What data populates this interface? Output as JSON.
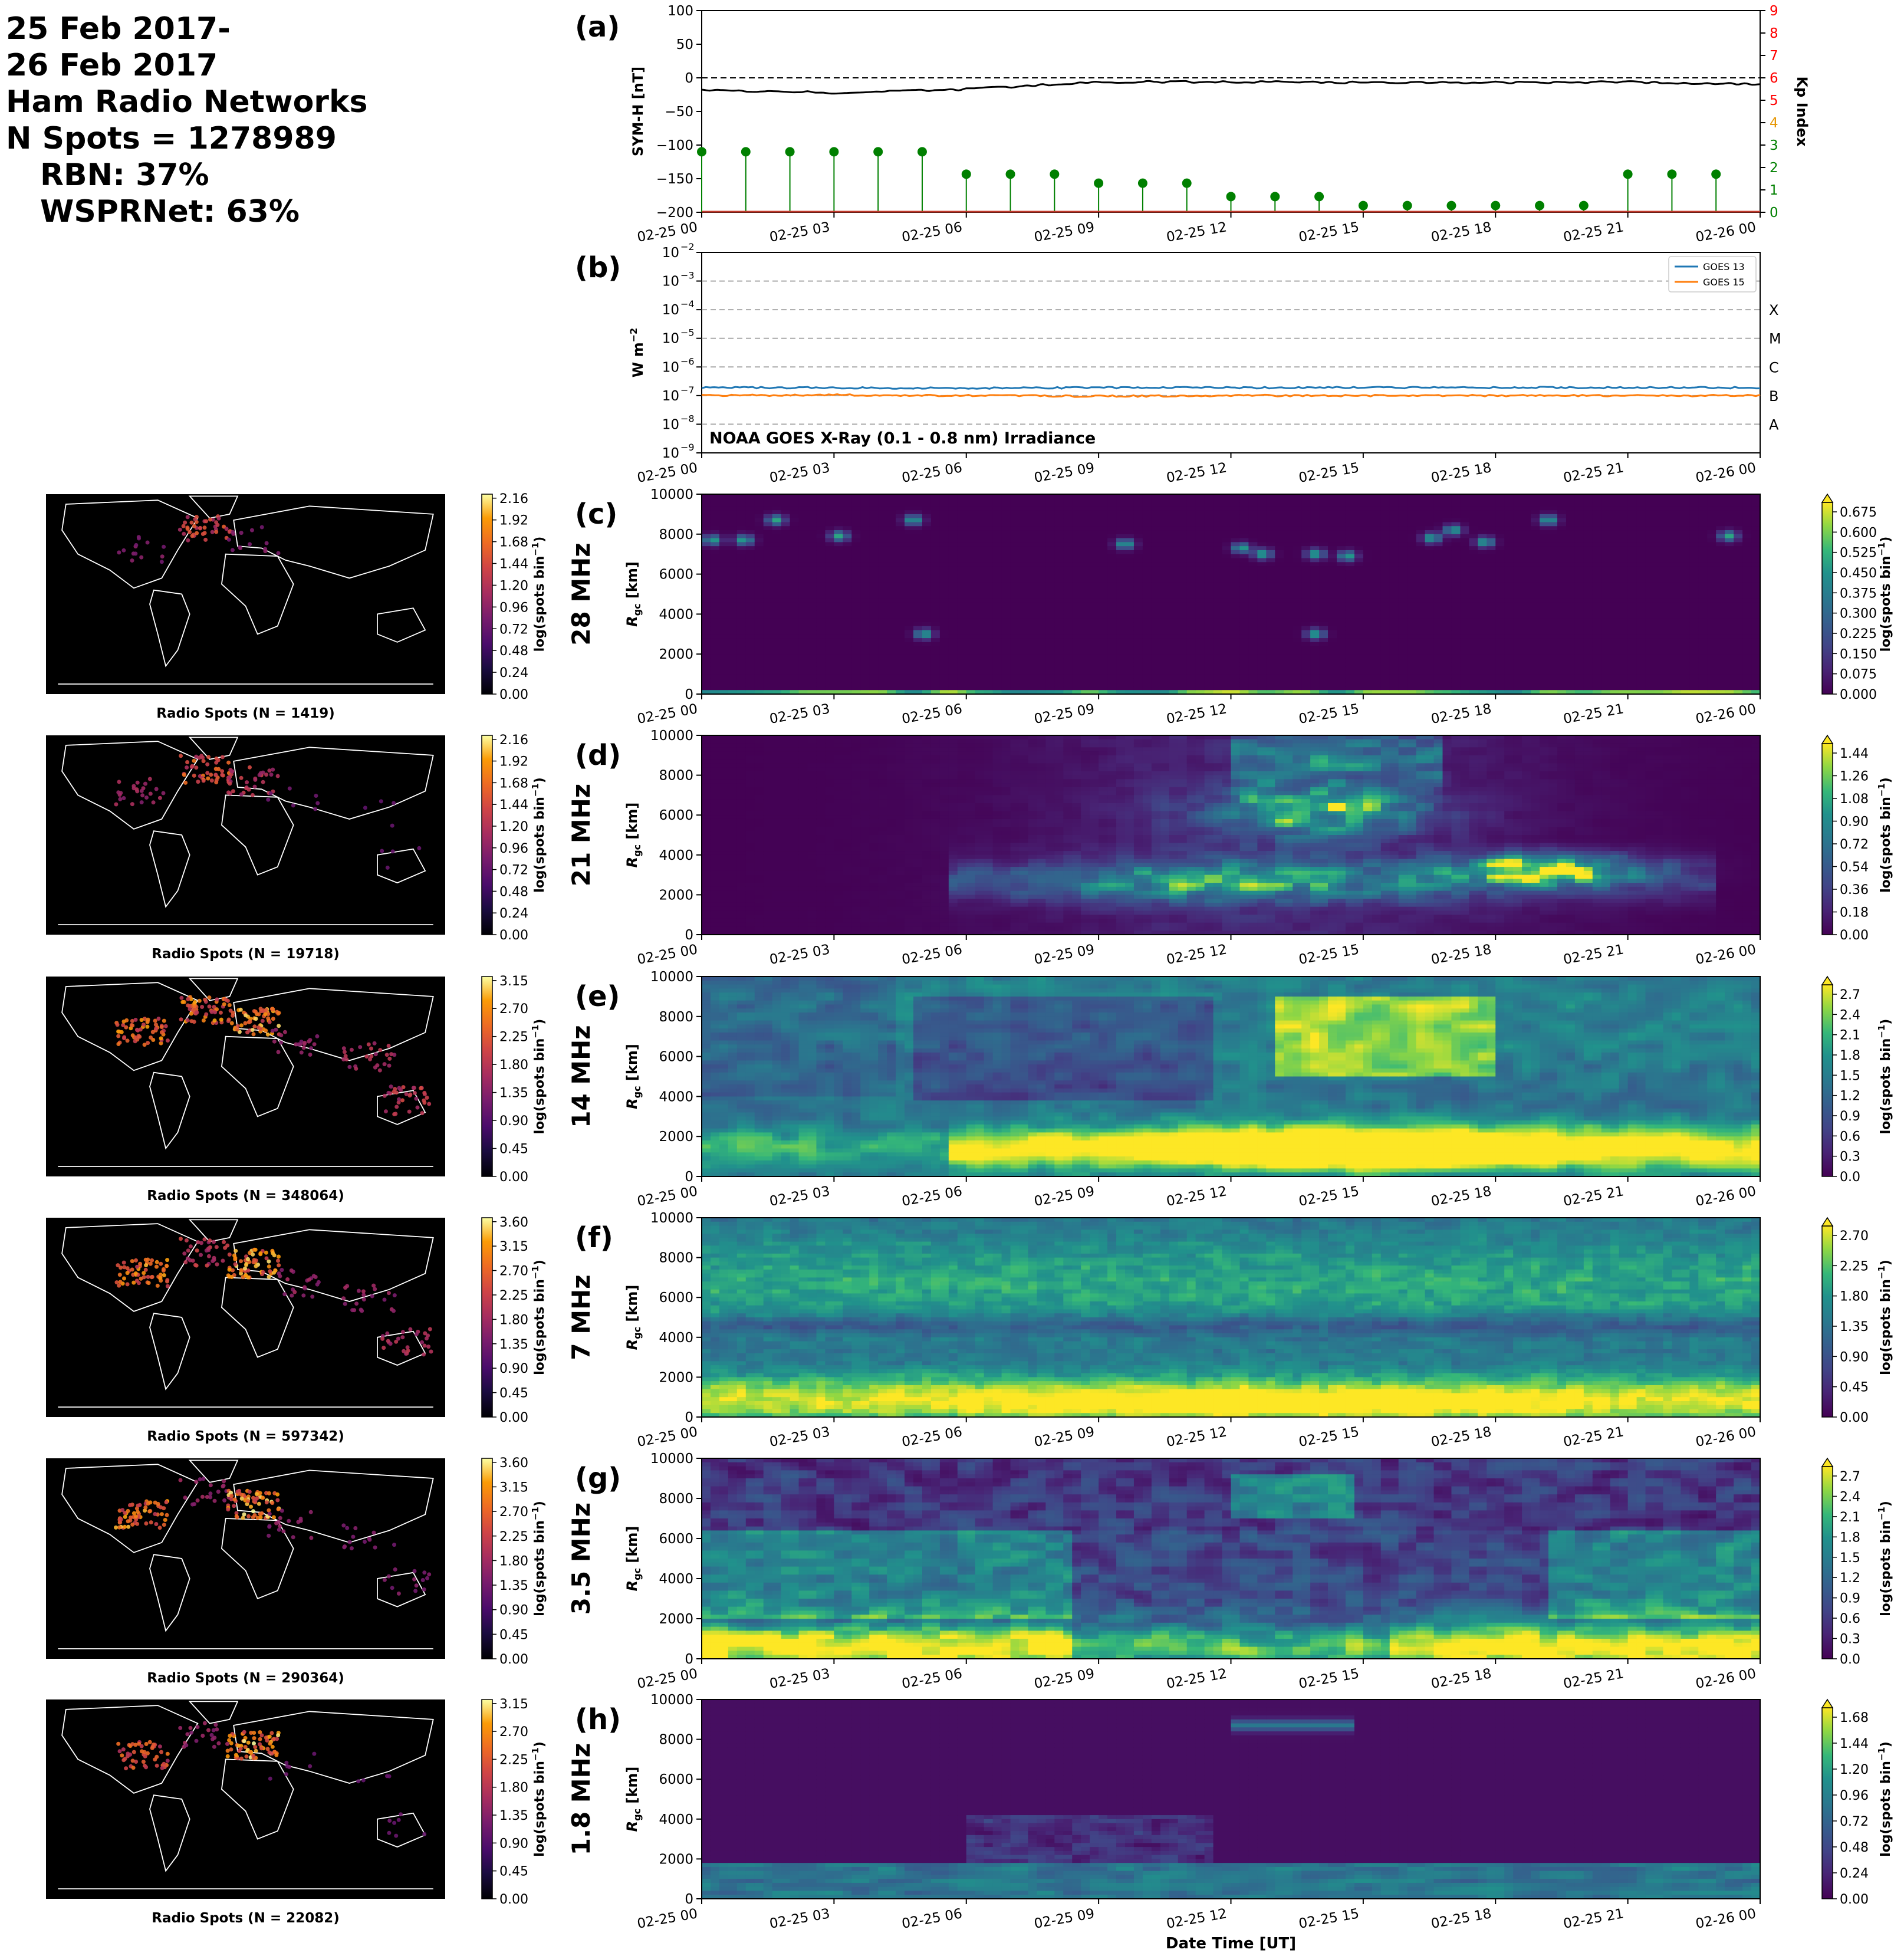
{
  "header": {
    "date_line1": "25 Feb 2017-",
    "date_line2": "26 Feb 2017",
    "network_title": "Ham Radio Networks",
    "n_spots": "N Spots = 1278989",
    "rbn": "RBN: 37%",
    "wsprnet": "WSPRNet: 63%"
  },
  "x_ticks": [
    "02-25 00",
    "02-25 03",
    "02-25 06",
    "02-25 09",
    "02-25 12",
    "02-25 15",
    "02-25 18",
    "02-25 21",
    "02-26 00"
  ],
  "x_axis_label": "Date Time [UT]",
  "colors": {
    "symh": "#000000",
    "kp": "#008000",
    "kp_axis": "#ff0000",
    "goes13": "#1f77b4",
    "goes15": "#ff7f0e",
    "map_bg": "#000000",
    "coast": "#ffffff"
  },
  "panel_a": {
    "label": "(a)",
    "ylabel": "SYM-H [nT]",
    "y2label": "Kp Index",
    "y_ticks": [
      "100",
      "50",
      "0",
      "−50",
      "−100",
      "−150",
      "−200"
    ],
    "y2_ticks": [
      "9",
      "8",
      "7",
      "6",
      "5",
      "4",
      "3",
      "2",
      "1",
      "0"
    ]
  },
  "panel_b": {
    "label": "(b)",
    "ylabel": "W m",
    "ylabel_sup": "−2",
    "y_ticks": [
      {
        "base": "10",
        "exp": "−2"
      },
      {
        "base": "10",
        "exp": "−3"
      },
      {
        "base": "10",
        "exp": "−4"
      },
      {
        "base": "10",
        "exp": "−5"
      },
      {
        "base": "10",
        "exp": "−6"
      },
      {
        "base": "10",
        "exp": "−7"
      },
      {
        "base": "10",
        "exp": "−8"
      },
      {
        "base": "10",
        "exp": "−9"
      }
    ],
    "flare_classes": [
      "X",
      "M",
      "C",
      "B",
      "A"
    ],
    "legend": [
      "GOES 13",
      "GOES 15"
    ],
    "title": "NOAA GOES X-Ray (0.1 - 0.8 nm) Irradiance"
  },
  "rgc_label": "R",
  "rgc_sub": "gc",
  "rgc_unit": " [km]",
  "rgc_ticks": [
    "10000",
    "8000",
    "6000",
    "4000",
    "2000",
    "0"
  ],
  "cbar_label": "log(spots bin",
  "cbar_sup": "−1",
  "cbar_close": ")",
  "bands": [
    {
      "label": "(c)",
      "freq": "28 MHz",
      "map_caption": "Radio Spots (N = 1419)",
      "map_ticks": [
        "2.16",
        "1.92",
        "1.68",
        "1.44",
        "1.20",
        "0.96",
        "0.72",
        "0.48",
        "0.24",
        "0.00"
      ],
      "rti_ticks": [
        "0.675",
        "0.600",
        "0.525",
        "0.450",
        "0.375",
        "0.300",
        "0.225",
        "0.150",
        "0.075",
        "0.000"
      ]
    },
    {
      "label": "(d)",
      "freq": "21 MHz",
      "map_caption": "Radio Spots (N = 19718)",
      "map_ticks": [
        "2.16",
        "1.92",
        "1.68",
        "1.44",
        "1.20",
        "0.96",
        "0.72",
        "0.48",
        "0.24",
        "0.00"
      ],
      "rti_ticks": [
        "1.44",
        "1.26",
        "1.08",
        "0.90",
        "0.72",
        "0.54",
        "0.36",
        "0.18",
        "0.00"
      ]
    },
    {
      "label": "(e)",
      "freq": "14 MHz",
      "map_caption": "Radio Spots (N = 348064)",
      "map_ticks": [
        "3.15",
        "2.70",
        "2.25",
        "1.80",
        "1.35",
        "0.90",
        "0.45",
        "0.00"
      ],
      "rti_ticks": [
        "2.7",
        "2.4",
        "2.1",
        "1.8",
        "1.5",
        "1.2",
        "0.9",
        "0.6",
        "0.3",
        "0.0"
      ]
    },
    {
      "label": "(f)",
      "freq": "7 MHz",
      "map_caption": "Radio Spots (N = 597342)",
      "map_ticks": [
        "3.60",
        "3.15",
        "2.70",
        "2.25",
        "1.80",
        "1.35",
        "0.90",
        "0.45",
        "0.00"
      ],
      "rti_ticks": [
        "2.70",
        "2.25",
        "1.80",
        "1.35",
        "0.90",
        "0.45",
        "0.00"
      ]
    },
    {
      "label": "(g)",
      "freq": "3.5 MHz",
      "map_caption": "Radio Spots (N = 290364)",
      "map_ticks": [
        "3.60",
        "3.15",
        "2.70",
        "2.25",
        "1.80",
        "1.35",
        "0.90",
        "0.45",
        "0.00"
      ],
      "rti_ticks": [
        "2.7",
        "2.4",
        "2.1",
        "1.8",
        "1.5",
        "1.2",
        "0.9",
        "0.6",
        "0.3",
        "0.0"
      ]
    },
    {
      "label": "(h)",
      "freq": "1.8 MHz",
      "map_caption": "Radio Spots (N = 22082)",
      "map_ticks": [
        "3.15",
        "2.70",
        "2.25",
        "1.80",
        "1.35",
        "0.90",
        "0.45",
        "0.00"
      ],
      "rti_ticks": [
        "1.68",
        "1.44",
        "1.20",
        "0.96",
        "0.72",
        "0.48",
        "0.24",
        "0.00"
      ]
    }
  ],
  "chart_data": [
    {
      "type": "line",
      "title": "",
      "ylabel": "SYM-H [nT]",
      "ylim": [
        -200,
        100
      ],
      "x": [
        "02-25 00",
        "02-25 03",
        "02-25 06",
        "02-25 09",
        "02-25 12",
        "02-25 15",
        "02-25 18",
        "02-25 21",
        "02-26 00"
      ],
      "series": [
        {
          "name": "",
          "values": [
            -18,
            -22,
            -17,
            -6,
            -6,
            -7,
            -7,
            -6,
            -10
          ]
        }
      ],
      "y2label": "Kp Index",
      "y2lim": [
        0,
        9
      ],
      "kp": {
        "x_hours": [
          0,
          1,
          2,
          3,
          4,
          5,
          6,
          7,
          8,
          9,
          10,
          11,
          12,
          13,
          14,
          15,
          16,
          17,
          18,
          19,
          20,
          21,
          22,
          23
        ],
        "values": [
          2.7,
          2.7,
          2.7,
          2.7,
          2.7,
          2.7,
          1.7,
          1.7,
          1.7,
          1.3,
          1.3,
          1.3,
          0.7,
          0.7,
          0.7,
          0.3,
          0.3,
          0.3,
          0.3,
          0.3,
          0.3,
          1.7,
          1.7,
          1.7
        ]
      }
    },
    {
      "type": "line",
      "title": "NOAA GOES X-Ray (0.1 - 0.8 nm) Irradiance",
      "ylabel": "W m^-2",
      "yscale": "log",
      "ylim": [
        1e-09,
        0.01
      ],
      "x": [
        "02-25 00",
        "02-25 03",
        "02-25 06",
        "02-25 09",
        "02-25 12",
        "02-25 15",
        "02-25 18",
        "02-25 21",
        "02-26 00"
      ],
      "series": [
        {
          "name": "GOES 13",
          "values": [
            1.9e-07,
            1.9e-07,
            1.8e-07,
            1.9e-07,
            1.9e-07,
            1.9e-07,
            1.9e-07,
            1.9e-07,
            1.9e-07
          ]
        },
        {
          "name": "GOES 15",
          "values": [
            1e-07,
            1.05e-07,
            1e-07,
            9.5e-08,
            1e-07,
            1e-07,
            1e-07,
            1e-07,
            1e-07
          ]
        }
      ]
    },
    {
      "type": "heatmap",
      "band": "28 MHz",
      "ylabel": "R_gc [km]",
      "ylim": [
        0,
        10000
      ],
      "clim": [
        0,
        0.675
      ],
      "max_at_km": [
        0,
        300
      ]
    },
    {
      "type": "heatmap",
      "band": "21 MHz",
      "ylabel": "R_gc [km]",
      "ylim": [
        0,
        10000
      ],
      "clim": [
        0,
        1.44
      ]
    },
    {
      "type": "heatmap",
      "band": "14 MHz",
      "ylabel": "R_gc [km]",
      "ylim": [
        0,
        10000
      ],
      "clim": [
        0,
        2.7
      ]
    },
    {
      "type": "heatmap",
      "band": "7 MHz",
      "ylabel": "R_gc [km]",
      "ylim": [
        0,
        10000
      ],
      "clim": [
        0,
        2.7
      ]
    },
    {
      "type": "heatmap",
      "band": "3.5 MHz",
      "ylabel": "R_gc [km]",
      "ylim": [
        0,
        10000
      ],
      "clim": [
        0,
        2.7
      ]
    },
    {
      "type": "heatmap",
      "band": "1.8 MHz",
      "ylabel": "R_gc [km]",
      "ylim": [
        0,
        10000
      ],
      "clim": [
        0,
        1.68
      ]
    }
  ]
}
